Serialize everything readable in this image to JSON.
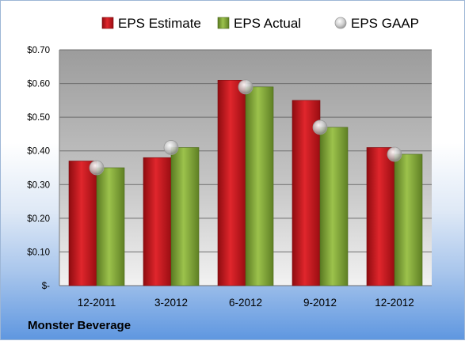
{
  "chart_data": {
    "type": "bar",
    "categories": [
      "12-2011",
      "3-2012",
      "6-2012",
      "9-2012",
      "12-2012"
    ],
    "series": [
      {
        "name": "EPS Estimate",
        "values": [
          0.37,
          0.38,
          0.61,
          0.55,
          0.41
        ],
        "color": "#c8141c",
        "kind": "bar"
      },
      {
        "name": "EPS Actual",
        "values": [
          0.35,
          0.41,
          0.59,
          0.47,
          0.39
        ],
        "color": "#7ea036",
        "kind": "bar"
      },
      {
        "name": "EPS GAAP",
        "values": [
          0.35,
          0.41,
          0.59,
          0.47,
          0.39
        ],
        "color": "#b8b8b8",
        "kind": "marker"
      }
    ],
    "yticks": [
      0,
      0.1,
      0.2,
      0.3,
      0.4,
      0.5,
      0.6,
      0.7
    ],
    "ytick_labels": [
      "$-",
      "$0.10",
      "$0.20",
      "$0.30",
      "$0.40",
      "$0.50",
      "$0.60",
      "$0.70"
    ],
    "ylim": [
      0,
      0.7
    ],
    "grid": true,
    "legend_position": "top"
  },
  "footer": {
    "company": "Monster Beverage"
  }
}
